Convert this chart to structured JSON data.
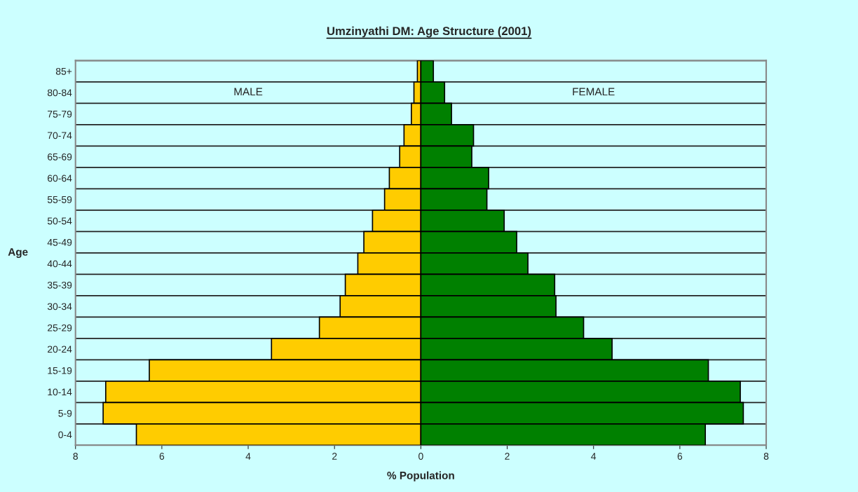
{
  "chart_data": {
    "type": "bar",
    "orientation": "horizontal",
    "title": "Umzinyathi DM: Age Structure (2001)",
    "xlabel": "% Population",
    "ylabel": "Age",
    "categories": [
      "85+",
      "80-84",
      "75-79",
      "70-74",
      "65-69",
      "60-64",
      "55-59",
      "50-54",
      "45-49",
      "40-44",
      "35-39",
      "30-34",
      "25-29",
      "20-24",
      "15-19",
      "10-14",
      "5-9",
      "0-4"
    ],
    "series": [
      {
        "color": "#ffcc00",
        "values": [
          -0.08,
          -0.16,
          -0.22,
          -0.39,
          -0.49,
          -0.73,
          -0.84,
          -1.12,
          -1.32,
          -1.46,
          -1.75,
          -1.87,
          -2.35,
          -3.46,
          -6.29,
          -7.3,
          -7.36,
          -6.59
        ]
      },
      {
        "color": "#008000",
        "values": [
          0.29,
          0.55,
          0.71,
          1.22,
          1.18,
          1.57,
          1.53,
          1.93,
          2.22,
          2.48,
          3.1,
          3.13,
          3.77,
          4.43,
          6.66,
          7.4,
          7.47,
          6.59
        ]
      }
    ],
    "xlim": [
      -8,
      8
    ],
    "xticks": [
      {
        "value": -8,
        "label": "8"
      },
      {
        "value": -6,
        "label": "6"
      },
      {
        "value": -4,
        "label": "4"
      },
      {
        "value": -2,
        "label": "2"
      },
      0,
      2,
      4,
      6,
      8
    ],
    "stacked": true,
    "annotations": [
      "MALE",
      "FEMALE"
    ],
    "grid": "y"
  }
}
